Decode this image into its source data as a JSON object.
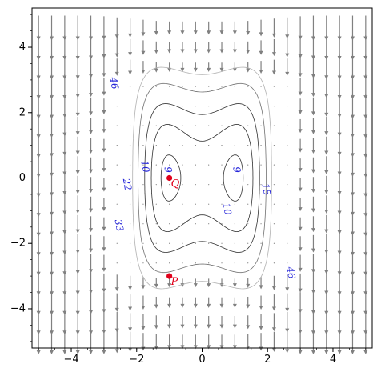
{
  "chart_data": {
    "type": "contour",
    "xlim": [
      -5.2,
      5.2
    ],
    "ylim": [
      -5.2,
      5.2
    ],
    "x_ticks": [
      -4,
      -2,
      0,
      2,
      4
    ],
    "y_ticks": [
      -4,
      -2,
      0,
      2,
      4
    ],
    "x_tick_labels": [
      "−4",
      "−2",
      "0",
      "2",
      "4"
    ],
    "y_tick_labels": [
      "−4",
      "−2",
      "0",
      "2",
      "4"
    ],
    "grid": false,
    "vector_field": {
      "color": "#808080",
      "description": "slope field, vertical arrows"
    },
    "contour_levels": [
      9,
      10,
      15,
      22,
      33,
      46
    ],
    "contour_labels": [
      {
        "text": "9",
        "x": -1.05,
        "y": 0.25
      },
      {
        "text": "9",
        "x": 1.05,
        "y": 0.25
      },
      {
        "text": "10",
        "x": -1.75,
        "y": 0.35
      },
      {
        "text": "10",
        "x": 0.75,
        "y": -0.95
      },
      {
        "text": "15",
        "x": 1.95,
        "y": -0.35
      },
      {
        "text": "22",
        "x": -2.3,
        "y": -0.2
      },
      {
        "text": "33",
        "x": -2.55,
        "y": -1.45
      },
      {
        "text": "46",
        "x": -2.7,
        "y": 2.9
      },
      {
        "text": "46",
        "x": 2.7,
        "y": -2.9
      }
    ],
    "points": [
      {
        "label": "Q",
        "x": -1,
        "y": 0,
        "color": "#e0001a"
      },
      {
        "label": "P",
        "x": -1,
        "y": -3,
        "color": "#e0001a"
      }
    ]
  }
}
